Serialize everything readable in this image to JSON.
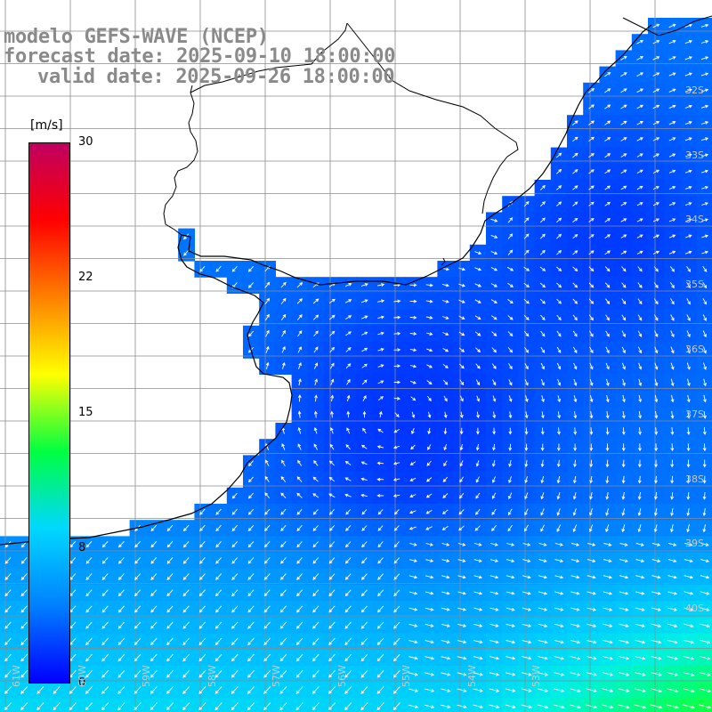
{
  "title": {
    "model": "modelo GEFS-WAVE (NCEP)",
    "forecast": "forecast date: 2025-09-10 18:00:00",
    "valid": "valid date: 2025-09-26 18:00:00"
  },
  "colorbar": {
    "unit": "[m/s]",
    "ticks": [
      "30",
      "22",
      "15",
      "8",
      "0"
    ],
    "tick_values": [
      30,
      22,
      15,
      8,
      0
    ],
    "min": 0,
    "max": 30,
    "colors": [
      "#0000ff",
      "#0080ff",
      "#00d8ff",
      "#00ff40",
      "#ffff00",
      "#ff8000",
      "#ff0000",
      "#c00060"
    ]
  },
  "axes": {
    "lat_labels": [
      "32S",
      "33S",
      "34S",
      "35S",
      "36S",
      "37S",
      "38S",
      "39S",
      "40S"
    ],
    "lon_labels": [
      "61W",
      "60W",
      "59W",
      "58W",
      "57W",
      "56W",
      "55W",
      "54W",
      "53W"
    ]
  },
  "colors": {
    "grid": "#8c8c8c",
    "coast": "#000000",
    "arrow": "#ffffff",
    "land": "#ffffff"
  }
}
